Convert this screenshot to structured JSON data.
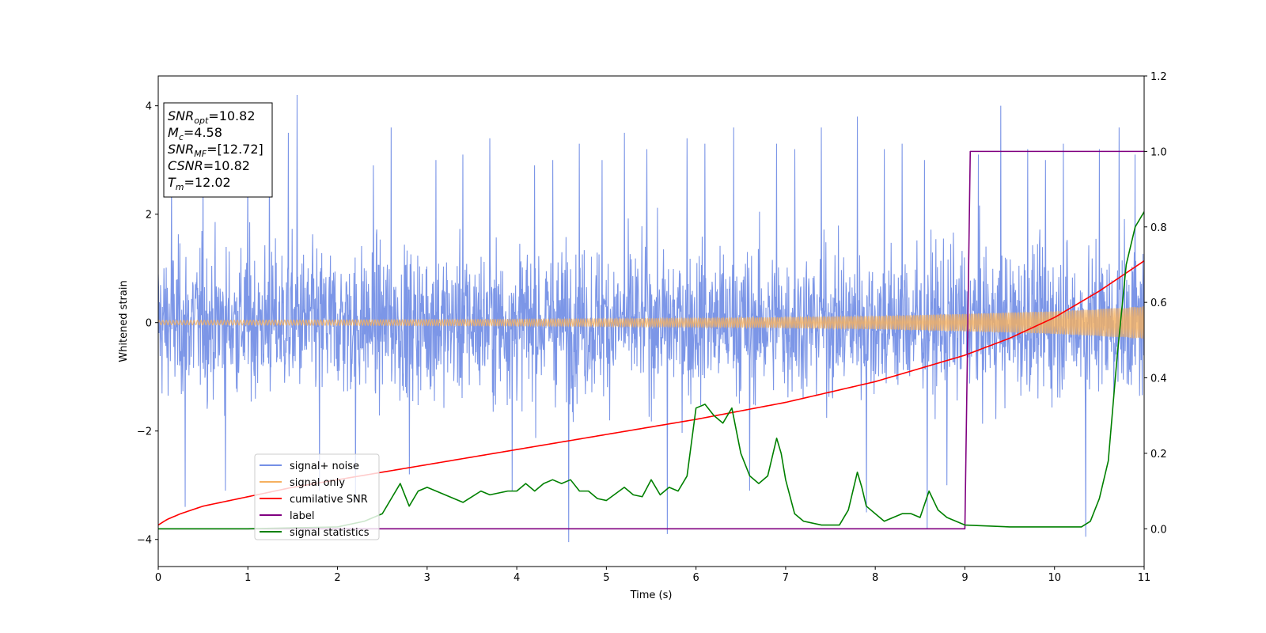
{
  "chart_data": {
    "type": "line",
    "xlabel": "Time (s)",
    "ylabel": "Whitened strain",
    "xlim": [
      0,
      11
    ],
    "ylim": [
      -4.5,
      4.55
    ],
    "y2lim": [
      -0.1,
      1.2
    ],
    "x_ticks": [
      "0",
      "1",
      "2",
      "3",
      "4",
      "5",
      "6",
      "7",
      "8",
      "9",
      "10",
      "11"
    ],
    "y_ticks": [
      "4",
      "2",
      "0",
      "−2",
      "−4"
    ],
    "y2_ticks": [
      "1.2",
      "1.0",
      "0.8",
      "0.6",
      "0.4",
      "0.2",
      "0.0"
    ],
    "legend_position": "lower-left",
    "info_box": {
      "position": "top-left",
      "lines": [
        {
          "base": "SNR",
          "sub": "opt",
          "rest": "=10.82"
        },
        {
          "base": "M",
          "sub": "c",
          "rest": "=4.58"
        },
        {
          "base": "SNR",
          "sub": "MF",
          "rest": "=[12.72]"
        },
        {
          "base": "CSNR",
          "sub": "",
          "rest": "=10.82"
        },
        {
          "base": "T",
          "sub": "m",
          "rest": "=12.02"
        }
      ]
    },
    "series": [
      {
        "name": "signal+ noise",
        "color": "#7590e6",
        "axis": "left",
        "style": "dense noise, amplitude roughly ±2 with spikes up to ±4.2",
        "spikes": [
          [
            0.15,
            2.7
          ],
          [
            0.3,
            -3.4
          ],
          [
            0.5,
            3.1
          ],
          [
            0.75,
            -3.1
          ],
          [
            1.0,
            3.0
          ],
          [
            1.24,
            3.1
          ],
          [
            1.45,
            3.5
          ],
          [
            1.55,
            4.2
          ],
          [
            1.8,
            -3.1
          ],
          [
            2.2,
            -3.3
          ],
          [
            2.4,
            2.9
          ],
          [
            2.6,
            3.6
          ],
          [
            2.8,
            -2.8
          ],
          [
            3.1,
            3.0
          ],
          [
            3.4,
            3.1
          ],
          [
            3.7,
            3.4
          ],
          [
            3.95,
            -3.1
          ],
          [
            4.2,
            2.9
          ],
          [
            4.4,
            3.0
          ],
          [
            4.58,
            -4.05
          ],
          [
            4.7,
            3.3
          ],
          [
            4.95,
            3.0
          ],
          [
            5.2,
            3.5
          ],
          [
            5.45,
            3.2
          ],
          [
            5.68,
            -3.9
          ],
          [
            5.9,
            3.4
          ],
          [
            6.1,
            3.3
          ],
          [
            6.42,
            3.6
          ],
          [
            6.6,
            -3.1
          ],
          [
            6.9,
            3.3
          ],
          [
            7.1,
            3.2
          ],
          [
            7.4,
            3.6
          ],
          [
            7.8,
            3.8
          ],
          [
            7.9,
            -3.5
          ],
          [
            8.1,
            3.2
          ],
          [
            8.3,
            3.3
          ],
          [
            8.55,
            3.0
          ],
          [
            8.58,
            -3.8
          ],
          [
            8.8,
            -3.0
          ],
          [
            9.15,
            3.1
          ],
          [
            9.4,
            4.0
          ],
          [
            9.7,
            3.2
          ],
          [
            9.9,
            3.0
          ],
          [
            10.1,
            3.3
          ],
          [
            10.35,
            -3.95
          ],
          [
            10.5,
            3.2
          ],
          [
            10.72,
            3.6
          ],
          [
            10.9,
            3.1
          ]
        ]
      },
      {
        "name": "signal only",
        "color": "#f5b05f",
        "axis": "left",
        "style": "chirp envelope",
        "envelope_x": [
          0,
          2,
          4,
          6,
          8,
          9,
          10,
          10.5,
          11
        ],
        "envelope_amp": [
          0.04,
          0.05,
          0.06,
          0.08,
          0.12,
          0.16,
          0.21,
          0.25,
          0.3
        ]
      },
      {
        "name": "cumilative SNR",
        "color": "#ff0000",
        "axis": "right",
        "x": [
          0,
          0.1,
          0.25,
          0.5,
          1,
          1.5,
          2,
          3,
          4,
          5,
          6,
          7,
          8,
          9,
          9.5,
          10,
          10.5,
          11
        ],
        "y": [
          0.01,
          0.025,
          0.04,
          0.06,
          0.085,
          0.11,
          0.13,
          0.17,
          0.21,
          0.25,
          0.29,
          0.335,
          0.39,
          0.46,
          0.505,
          0.56,
          0.63,
          0.71
        ]
      },
      {
        "name": "label",
        "color": "#800080",
        "axis": "right",
        "x": [
          0,
          9.0,
          9.06,
          11
        ],
        "y": [
          0,
          0,
          1,
          1
        ]
      },
      {
        "name": "signal statistics",
        "color": "#008000",
        "axis": "right",
        "x": [
          0,
          1,
          2,
          2.3,
          2.5,
          2.6,
          2.7,
          2.8,
          2.9,
          3.0,
          3.2,
          3.3,
          3.4,
          3.5,
          3.6,
          3.7,
          3.8,
          3.9,
          4.0,
          4.1,
          4.2,
          4.3,
          4.4,
          4.5,
          4.6,
          4.7,
          4.8,
          4.9,
          5.0,
          5.2,
          5.3,
          5.4,
          5.5,
          5.6,
          5.7,
          5.8,
          5.9,
          6.0,
          6.1,
          6.2,
          6.3,
          6.4,
          6.5,
          6.6,
          6.7,
          6.8,
          6.9,
          6.95,
          7.0,
          7.1,
          7.2,
          7.4,
          7.6,
          7.7,
          7.8,
          7.85,
          7.9,
          8.0,
          8.1,
          8.2,
          8.3,
          8.4,
          8.5,
          8.6,
          8.7,
          8.8,
          9.0,
          9.5,
          10.0,
          10.3,
          10.4,
          10.5,
          10.6,
          10.7,
          10.8,
          10.9,
          11.0
        ],
        "y": [
          0,
          0.0,
          0.005,
          0.02,
          0.04,
          0.08,
          0.12,
          0.06,
          0.1,
          0.11,
          0.09,
          0.08,
          0.07,
          0.085,
          0.1,
          0.09,
          0.095,
          0.1,
          0.1,
          0.12,
          0.1,
          0.12,
          0.13,
          0.12,
          0.13,
          0.1,
          0.1,
          0.08,
          0.075,
          0.11,
          0.09,
          0.085,
          0.13,
          0.09,
          0.11,
          0.1,
          0.14,
          0.32,
          0.33,
          0.3,
          0.28,
          0.32,
          0.2,
          0.14,
          0.12,
          0.14,
          0.24,
          0.2,
          0.13,
          0.04,
          0.02,
          0.01,
          0.01,
          0.05,
          0.15,
          0.11,
          0.06,
          0.04,
          0.02,
          0.03,
          0.04,
          0.04,
          0.03,
          0.1,
          0.05,
          0.03,
          0.01,
          0.005,
          0.005,
          0.005,
          0.02,
          0.08,
          0.18,
          0.46,
          0.7,
          0.8,
          0.84
        ]
      }
    ]
  }
}
